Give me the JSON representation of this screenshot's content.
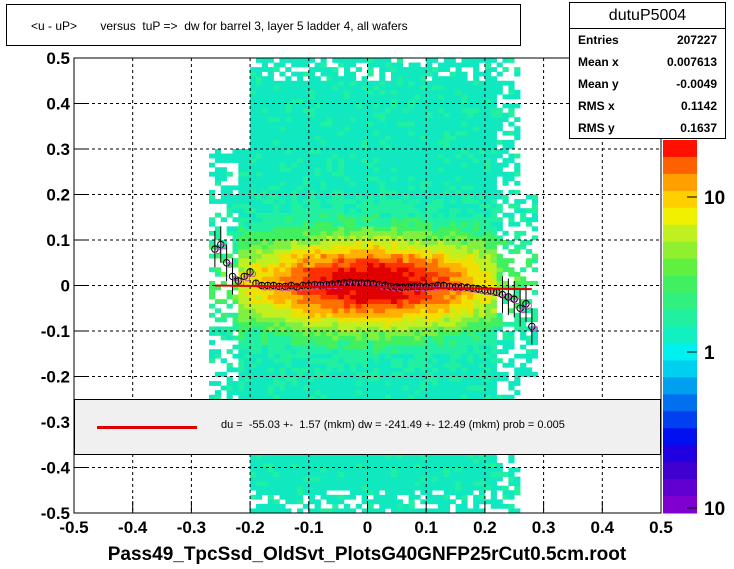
{
  "chart_data": {
    "type": "heatmap",
    "title": "<u - uP>       versus  tuP =>  dw for barrel 3, layer 5 ladder 4, all wafers",
    "xlabel": "Pass49_TpcSsd_OldSvt_PlotsG40GNFP25rCut0.5cm.root",
    "ylabel": "",
    "xlim": [
      -0.5,
      0.5
    ],
    "ylim": [
      -0.5,
      0.5
    ],
    "x_ticks": [
      "-0.5",
      "-0.4",
      "-0.3",
      "-0.2",
      "-0.1",
      "0",
      "0.1",
      "0.2",
      "0.3",
      "0.4",
      "0.5"
    ],
    "y_ticks": [
      "-0.5",
      "-0.4",
      "-0.3",
      "-0.2",
      "-0.1",
      "0",
      "0.1",
      "0.2",
      "0.3",
      "0.4",
      "0.5"
    ],
    "grid": true,
    "colorbar": {
      "scale": "log",
      "tick_labels": [
        "10",
        "1",
        "10"
      ]
    },
    "profile_points": {
      "x": [
        -0.26,
        -0.25,
        -0.24,
        -0.23,
        -0.22,
        -0.21,
        -0.2,
        -0.19,
        -0.18,
        -0.17,
        -0.16,
        -0.15,
        -0.14,
        -0.13,
        -0.12,
        -0.11,
        -0.1,
        -0.09,
        -0.08,
        -0.07,
        -0.06,
        -0.05,
        -0.04,
        -0.03,
        -0.02,
        -0.01,
        0.0,
        0.01,
        0.02,
        0.03,
        0.04,
        0.05,
        0.06,
        0.07,
        0.08,
        0.09,
        0.1,
        0.11,
        0.12,
        0.13,
        0.14,
        0.15,
        0.16,
        0.17,
        0.18,
        0.19,
        0.2,
        0.21,
        0.22,
        0.23,
        0.24,
        0.25,
        0.26,
        0.27,
        0.28
      ],
      "y": [
        0.08,
        0.09,
        0.05,
        0.02,
        0.01,
        0.02,
        0.03,
        0.005,
        0.0,
        0.0,
        0.0,
        -0.002,
        -0.002,
        0.0,
        -0.003,
        0.0,
        0.0,
        0.002,
        0.001,
        0.002,
        0.003,
        0.004,
        0.006,
        0.007,
        0.006,
        0.006,
        0.005,
        0.004,
        0.002,
        0.0,
        -0.002,
        -0.003,
        -0.004,
        -0.003,
        -0.002,
        -0.002,
        -0.003,
        -0.002,
        0.0,
        0.0,
        -0.002,
        -0.003,
        -0.003,
        -0.004,
        -0.006,
        -0.008,
        -0.01,
        -0.012,
        -0.015,
        -0.02,
        -0.025,
        -0.03,
        -0.05,
        -0.04,
        -0.09
      ]
    },
    "fit_line": {
      "x": [
        -0.26,
        0.28
      ],
      "y": [
        0.0,
        -0.008
      ],
      "color": "#e00000"
    },
    "stats": {
      "name": "dutuP5004",
      "rows": [
        {
          "label": "Entries",
          "value": "207227"
        },
        {
          "label": "Mean x",
          "value": "0.007613"
        },
        {
          "label": "Mean y",
          "value": "-0.0049"
        },
        {
          "label": "RMS x",
          "value": "0.1142"
        },
        {
          "label": "RMS y",
          "value": "0.1637"
        }
      ]
    },
    "fit_legend": "du =  -55.03 +-  1.57 (mkm) dw = -241.49 +- 12.49 (mkm) prob = 0.005"
  }
}
